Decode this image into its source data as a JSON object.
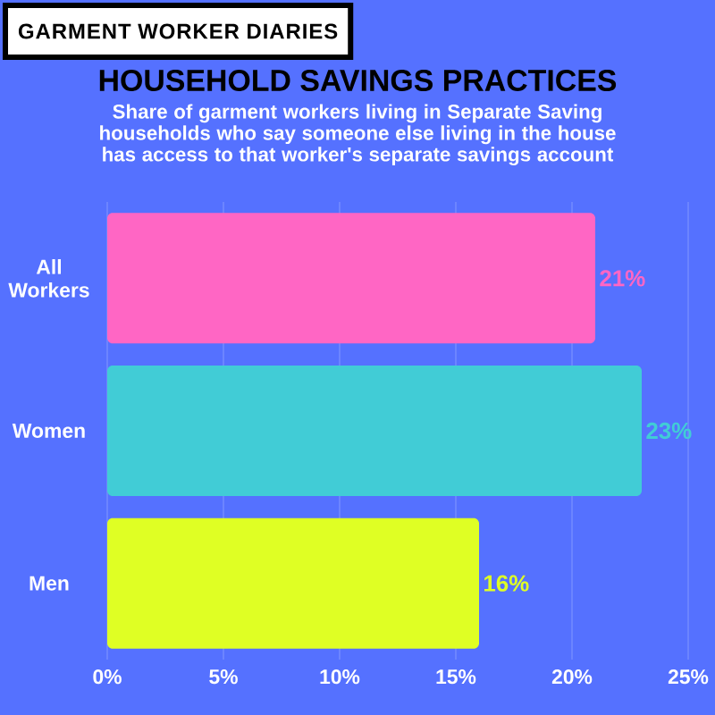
{
  "chart_data": {
    "type": "bar",
    "orientation": "horizontal",
    "title": "HOUSEHOLD SAVINGS PRACTICES",
    "subtitle": "Share of garment workers living in Separate Saving households who say someone else living in the house has access to that worker's separate savings account",
    "annotations": [
      "GARMENT WORKER DIARIES"
    ],
    "categories": [
      "All Workers",
      "Women",
      "Men"
    ],
    "values": [
      21,
      23,
      16
    ],
    "colors": [
      "#ff66c4",
      "#41ccd6",
      "#dfff24"
    ],
    "value_labels": [
      "21%",
      "23%",
      "16%"
    ],
    "xlim": [
      0,
      25
    ],
    "xticks": [
      {
        "value": 0,
        "label": "0%"
      },
      {
        "value": 5,
        "label": "5%"
      },
      {
        "value": 10,
        "label": "10%"
      },
      {
        "value": 15,
        "label": "15%"
      },
      {
        "value": 20,
        "label": "20%"
      },
      {
        "value": 25,
        "label": "25%"
      }
    ],
    "grid": "x"
  }
}
